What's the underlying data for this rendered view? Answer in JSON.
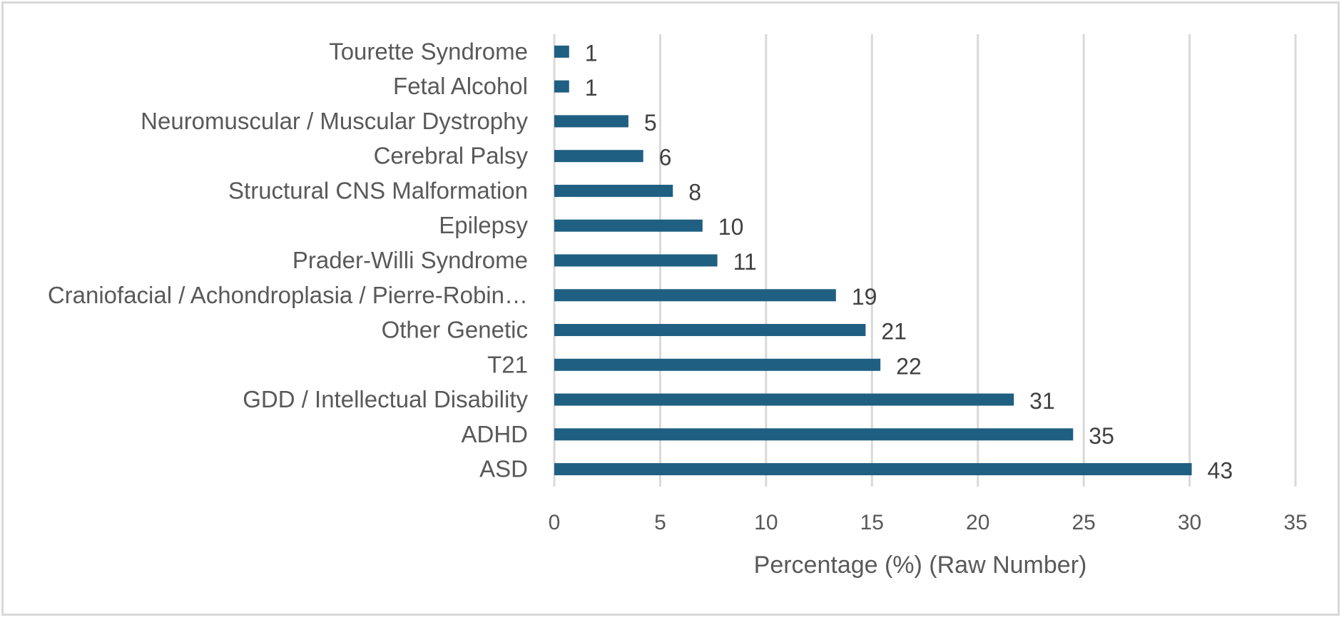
{
  "chart_data": {
    "type": "bar",
    "orientation": "horizontal",
    "title": "",
    "xlabel": "Percentage (%) (Raw Number)",
    "ylabel": "",
    "xlim": [
      0,
      35
    ],
    "xticks": [
      0,
      5,
      10,
      15,
      20,
      25,
      30,
      35
    ],
    "grid": true,
    "legend": "none",
    "bar_color": "#1f5f82",
    "categories": [
      "Tourette Syndrome",
      "Fetal Alcohol",
      "Neuromuscular / Muscular Dystrophy",
      "Cerebral Palsy",
      "Structural CNS Malformation",
      "Epilepsy",
      "Prader-Willi Syndrome",
      "Craniofacial / Achondroplasia / Pierre-Robin…",
      "Other  Genetic",
      "T21",
      "GDD / Intellectual Disability",
      "ADHD",
      "ASD"
    ],
    "values": [
      0.7,
      0.7,
      3.5,
      4.2,
      5.6,
      7.0,
      7.7,
      13.3,
      14.7,
      15.4,
      21.7,
      24.5,
      30.1
    ],
    "data_labels": [
      "1",
      "1",
      "5",
      "6",
      "8",
      "10",
      "11",
      "19",
      "21",
      "22",
      "31",
      "35",
      "43"
    ]
  }
}
